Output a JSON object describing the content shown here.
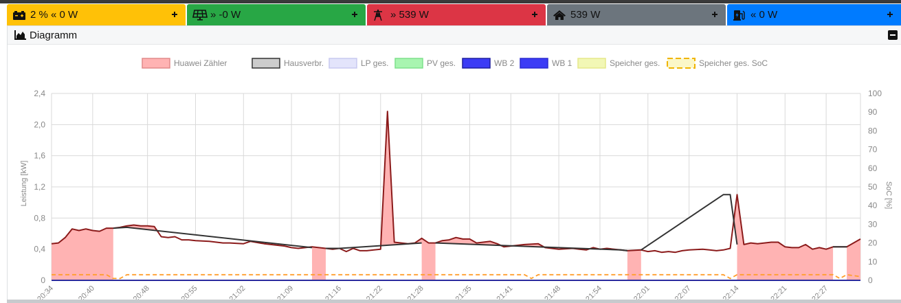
{
  "tiles": [
    {
      "id": "battery",
      "icon": "car-battery-icon",
      "text": "2 % « 0 W",
      "bg": "#ffc107",
      "fg": "#111111"
    },
    {
      "id": "pv",
      "icon": "solar-panel-icon",
      "text": "» -0 W",
      "bg": "#28a745",
      "fg": "#111111"
    },
    {
      "id": "grid",
      "icon": "power-tower-icon",
      "text": "» 539 W",
      "bg": "#dc3545",
      "fg": "#111111"
    },
    {
      "id": "house",
      "icon": "home-icon",
      "text": "539 W",
      "bg": "#6c757d",
      "fg": "#111111"
    },
    {
      "id": "charge",
      "icon": "charging-station-icon",
      "text": "« 0 W",
      "bg": "#007bff",
      "fg": "#111111"
    }
  ],
  "panel": {
    "title": "Diagramm",
    "icon": "area-chart-icon"
  },
  "chart_data": {
    "type": "area",
    "legend_position": "top",
    "grid": true,
    "ylabel": "Leistung [kW]",
    "y2label": "SoC [%]",
    "ylim": [
      0,
      2.4
    ],
    "y2lim": [
      0,
      100
    ],
    "ytick_labels": [
      "0",
      "0,4",
      "0,8",
      "1,2",
      "1,6",
      "2,0",
      "2,4"
    ],
    "y2tick_labels": [
      "0",
      "10",
      "20",
      "30",
      "40",
      "50",
      "60",
      "70",
      "80",
      "90",
      "100"
    ],
    "xtick_labels": [
      "20:34",
      "20:40",
      "20:48",
      "20:55",
      "21:02",
      "21:09",
      "21:16",
      "21:22",
      "21:28",
      "21:35",
      "21:41",
      "21:48",
      "21:54",
      "22:01",
      "22:07",
      "22:14",
      "22:21",
      "22:27"
    ],
    "x_range": [
      "20:34",
      "22:32"
    ],
    "legend": [
      {
        "name": "Huawei Zähler",
        "fill": "#ffb3b3",
        "stroke": "#e08a8a",
        "dashed": false
      },
      {
        "name": "Hausverbr.",
        "fill": "#cccccc",
        "stroke": "#333333",
        "dashed": false
      },
      {
        "name": "LP ges.",
        "fill": "#e3e4fb",
        "stroke": "#c8c9f0",
        "dashed": false
      },
      {
        "name": "PV ges.",
        "fill": "#a8f5b0",
        "stroke": "#7fe08c",
        "dashed": false
      },
      {
        "name": "WB 2",
        "fill": "#3c3cf5",
        "stroke": "#1f1f9e",
        "dashed": false
      },
      {
        "name": "WB 1",
        "fill": "#3c3cf5",
        "stroke": "#2b2bd0",
        "dashed": false
      },
      {
        "name": "Speicher ges.",
        "fill": "#f2f7b5",
        "stroke": "#e5e88a",
        "dashed": false
      },
      {
        "name": "Speicher ges. SoC",
        "fill": "#fbf7c8",
        "stroke": "#f0b400",
        "dashed": true
      }
    ],
    "colors": {
      "huawei_fill": "#ffb3b3",
      "huawei_line": "#8b1a1a",
      "haus_line": "#333333",
      "soc_line": "#ff9e2c",
      "wb_line": "#2b2b9e",
      "grid": "#d9d9d9",
      "axis_text": "#888888"
    },
    "series": [
      {
        "name": "Huawei Zähler",
        "x": [
          "20:34",
          "20:35",
          "20:36",
          "20:37",
          "20:38",
          "20:39",
          "20:40",
          "20:41",
          "20:42",
          "20:43",
          "20:44",
          "20:45",
          "20:46",
          "20:47",
          "20:48",
          "20:49",
          "20:50",
          "20:51",
          "20:52",
          "20:53",
          "20:54",
          "20:55",
          "20:57",
          "20:59",
          "21:00",
          "21:02",
          "21:03",
          "21:05",
          "21:06",
          "21:08",
          "21:09",
          "21:10",
          "21:12",
          "21:14",
          "21:15",
          "21:16",
          "21:17",
          "21:18",
          "21:19",
          "21:20",
          "21:21",
          "21:22",
          "21:23",
          "21:24",
          "21:25",
          "21:26",
          "21:27",
          "21:28",
          "21:29",
          "21:30",
          "21:31",
          "21:32",
          "21:33",
          "21:34",
          "21:35",
          "21:36",
          "21:38",
          "21:39",
          "21:40",
          "21:41",
          "21:43",
          "21:45",
          "21:46",
          "21:48",
          "21:50",
          "21:51",
          "21:52",
          "21:53",
          "21:54",
          "21:55",
          "21:57",
          "21:58",
          "22:00",
          "22:01",
          "22:02",
          "22:03",
          "22:04",
          "22:05",
          "22:06",
          "22:07",
          "22:09",
          "22:10",
          "22:11",
          "22:12",
          "22:13",
          "22:14",
          "22:15",
          "22:16",
          "22:17",
          "22:18",
          "22:19",
          "22:20",
          "22:21",
          "22:22",
          "22:23",
          "22:24",
          "22:25",
          "22:26",
          "22:27",
          "22:28",
          "22:30",
          "22:32"
        ],
        "values": [
          0.47,
          0.48,
          0.55,
          0.66,
          0.64,
          0.66,
          0.64,
          0.63,
          0.67,
          0.67,
          0.68,
          0.7,
          0.71,
          0.7,
          0.7,
          0.69,
          0.56,
          0.55,
          0.56,
          0.52,
          0.52,
          0.51,
          0.5,
          0.48,
          0.48,
          0.47,
          0.5,
          0.47,
          0.46,
          0.44,
          0.42,
          0.41,
          0.43,
          0.41,
          0.4,
          0.41,
          0.37,
          0.41,
          0.38,
          0.38,
          0.39,
          0.4,
          2.17,
          0.49,
          0.48,
          0.47,
          0.48,
          0.54,
          0.48,
          0.48,
          0.51,
          0.52,
          0.55,
          0.53,
          0.53,
          0.48,
          0.5,
          0.47,
          0.43,
          0.44,
          0.46,
          0.47,
          0.42,
          0.4,
          0.41,
          0.4,
          0.39,
          0.42,
          0.4,
          0.41,
          0.39,
          0.38,
          0.39,
          0.37,
          0.38,
          0.36,
          0.37,
          0.36,
          0.38,
          0.39,
          0.4,
          0.39,
          0.38,
          0.39,
          0.41,
          1.1,
          0.46,
          0.48,
          0.47,
          0.48,
          0.49,
          0.49,
          0.43,
          0.42,
          0.42,
          0.46,
          0.4,
          0.42,
          0.4,
          0.43,
          0.43,
          0.53
        ]
      },
      {
        "name": "Hausverbr.",
        "x": [
          "20:43",
          "20:45",
          "21:12",
          "21:14",
          "21:16",
          "21:28",
          "21:30",
          "21:57",
          "21:58",
          "22:00",
          "22:12",
          "22:13",
          "22:14",
          "22:28",
          "22:30"
        ],
        "values": [
          0.67,
          0.68,
          0.42,
          0.41,
          0.41,
          0.48,
          0.48,
          0.39,
          0.38,
          0.39,
          1.1,
          1.1,
          0.46,
          0.43,
          0.43
        ]
      },
      {
        "name": "Speicher ges. SoC",
        "x": [
          "20:34",
          "20:38",
          "20:42",
          "20:43",
          "20:44",
          "20:45",
          "21:43",
          "21:44",
          "21:45",
          "22:12",
          "22:13",
          "22:14",
          "22:28",
          "22:29",
          "22:30",
          "22:32"
        ],
        "values": [
          3,
          3,
          3,
          1,
          1,
          3,
          3,
          1,
          3,
          3,
          1,
          3,
          3,
          1,
          3,
          2
        ]
      }
    ]
  }
}
